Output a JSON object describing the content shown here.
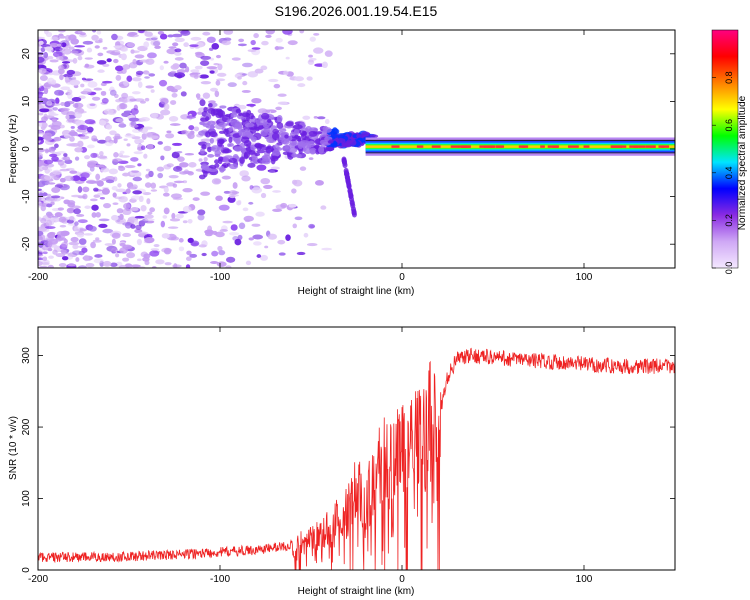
{
  "title": "S196.2026.001.19.54.E15",
  "colors": {
    "snr_line": "#ee2222",
    "frame": "#000000",
    "scatter_light": "#d6b8f5",
    "scatter_mid": "#a070ee",
    "scatter_dark": "#6a1fe0"
  },
  "chart_data": [
    {
      "type": "heatmap",
      "name": "spectrogram",
      "xlabel": "Height of straight line (km)",
      "ylabel": "Frequency (Hz)",
      "xlim": [
        -200,
        150
      ],
      "ylim": [
        -25,
        25
      ],
      "xticks": [
        -200,
        -100,
        0,
        100
      ],
      "xtick_labels": [
        "-200",
        "-100",
        "0",
        "100"
      ],
      "yticks": [
        -20,
        -10,
        0,
        10,
        20
      ],
      "ytick_labels": [
        "-20",
        "-10",
        "0",
        "10",
        "20"
      ],
      "signal_band": {
        "x_start": -20,
        "x_end": 150,
        "center_hz": 0.5,
        "halfwidth_hz": 1.2
      },
      "colorbar": {
        "label": "Normalized spectral amplitude",
        "range": [
          0,
          1
        ],
        "ticks": [
          0.0,
          0.2,
          0.4,
          0.6,
          0.8
        ],
        "tick_labels": [
          "0.0",
          "0.2",
          "0.4",
          "0.6",
          "0.8"
        ],
        "stops": [
          "#f4e8ff",
          "#cfa8f5",
          "#8a2be2",
          "#0000ff",
          "#00e5ff",
          "#00ff00",
          "#ffff00",
          "#ff8000",
          "#ff0000",
          "#ff0080"
        ]
      }
    },
    {
      "type": "line",
      "name": "snr",
      "xlabel": "Height of straight line (km)",
      "ylabel": "SNR (10 * v/v)",
      "xlim": [
        -200,
        150
      ],
      "ylim": [
        0,
        340
      ],
      "xticks": [
        -200,
        -100,
        0,
        100
      ],
      "xtick_labels": [
        "-200",
        "-100",
        "0",
        "100"
      ],
      "yticks": [
        0,
        100,
        200,
        300
      ],
      "ytick_labels": [
        "0",
        "100",
        "200",
        "300"
      ],
      "series": [
        {
          "name": "SNR",
          "x": [
            -200,
            -180,
            -160,
            -140,
            -120,
            -100,
            -80,
            -60,
            -50,
            -40,
            -30,
            -25,
            -20,
            -15,
            -10,
            -5,
            0,
            5,
            10,
            15,
            20,
            22,
            25,
            30,
            40,
            60,
            80,
            100,
            120,
            150
          ],
          "y": [
            18,
            18,
            18,
            20,
            22,
            25,
            28,
            35,
            45,
            60,
            80,
            110,
            95,
            130,
            150,
            140,
            175,
            180,
            185,
            200,
            215,
            230,
            270,
            295,
            300,
            295,
            292,
            288,
            285,
            285
          ]
        }
      ]
    }
  ]
}
